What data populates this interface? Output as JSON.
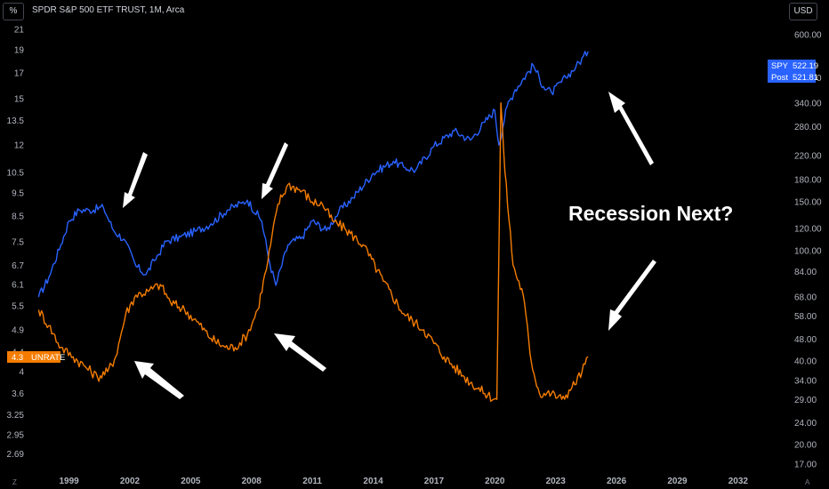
{
  "header": {
    "title": "SPDR S&P 500 ETF TRUST, 1M, Arca",
    "left_unit": "%",
    "right_unit": "USD"
  },
  "footer": {
    "left_glyph": "Z",
    "right_glyph": "A"
  },
  "annotation": {
    "text": "Recession Next?"
  },
  "colors": {
    "spy": "#2962ff",
    "unrate": "#f57c00",
    "background": "#000000",
    "annotation": "#ffffff"
  },
  "badges": {
    "unrate": {
      "value": "4.3",
      "label": "UNRATE"
    },
    "spy": {
      "label": "SPY",
      "value": "522.19"
    },
    "post": {
      "label": "Post",
      "value": "521.81"
    }
  },
  "chart_data": {
    "type": "line",
    "x_ticks": [
      "1999",
      "2002",
      "2005",
      "2008",
      "2011",
      "2014",
      "2017",
      "2020",
      "2023",
      "2026",
      "2029",
      "2032"
    ],
    "left_axis": {
      "scale": "log",
      "unit": "%",
      "ticks": [
        "21",
        "19",
        "17",
        "15",
        "13.5",
        "12",
        "10.5",
        "9.5",
        "8.5",
        "7.5",
        "6.7",
        "6.1",
        "5.5",
        "4.9",
        "4.4",
        "4",
        "3.6",
        "3.25",
        "2.95",
        "2.69"
      ]
    },
    "right_axis": {
      "scale": "log",
      "unit": "USD",
      "ticks": [
        "600.00",
        "420.00",
        "340.00",
        "280.00",
        "220.00",
        "180.00",
        "150.00",
        "120.00",
        "100.00",
        "84.00",
        "68.00",
        "58.00",
        "48.00",
        "40.00",
        "34.00",
        "29.00",
        "24.00",
        "20.00",
        "17.00"
      ]
    },
    "series": [
      {
        "name": "SPY",
        "axis": "right",
        "x": [
          1997.5,
          1998.0,
          1998.6,
          1999.0,
          1999.5,
          2000.0,
          2000.7,
          2001.2,
          2001.7,
          2002.3,
          2002.8,
          2003.2,
          2003.8,
          2004.5,
          2005.3,
          2006.0,
          2006.8,
          2007.5,
          2007.8,
          2008.5,
          2008.9,
          2009.2,
          2009.8,
          2010.5,
          2011.0,
          2011.7,
          2012.3,
          2013.0,
          2014.0,
          2015.0,
          2015.5,
          2016.1,
          2017.0,
          2018.0,
          2018.8,
          2019.5,
          2020.0,
          2020.2,
          2020.6,
          2021.0,
          2021.9,
          2022.4,
          2022.8,
          2023.5,
          2024.0,
          2024.6
        ],
        "values": [
          68,
          80,
          105,
          128,
          140,
          140,
          143,
          118,
          110,
          88,
          82,
          92,
          108,
          112,
          118,
          125,
          140,
          148,
          152,
          128,
          90,
          75,
          105,
          112,
          128,
          118,
          138,
          155,
          190,
          210,
          200,
          195,
          238,
          270,
          250,
          290,
          320,
          240,
          330,
          380,
          465,
          390,
          370,
          420,
          460,
          522
        ]
      },
      {
        "name": "UNRATE",
        "axis": "left",
        "x": [
          1997.5,
          1998.0,
          1998.6,
          1999.2,
          1999.8,
          2000.4,
          2000.9,
          2001.3,
          2001.8,
          2002.3,
          2002.9,
          2003.5,
          2004.0,
          2004.7,
          2005.3,
          2006.0,
          2006.7,
          2007.2,
          2007.8,
          2008.3,
          2008.8,
          2009.3,
          2009.8,
          2010.5,
          2011.0,
          2011.5,
          2012.0,
          2012.6,
          2013.5,
          2014.5,
          2015.5,
          2016.5,
          2017.5,
          2018.5,
          2019.5,
          2020.1,
          2020.3,
          2020.5,
          2020.9,
          2021.4,
          2021.8,
          2022.2,
          2022.8,
          2023.3,
          2023.8,
          2024.3,
          2024.6
        ],
        "values": [
          5.4,
          5.0,
          4.5,
          4.3,
          4.1,
          3.9,
          4.0,
          4.3,
          5.3,
          5.8,
          5.9,
          6.1,
          5.6,
          5.4,
          5.1,
          4.7,
          4.5,
          4.5,
          4.8,
          5.4,
          6.8,
          9.0,
          9.9,
          9.6,
          9.1,
          9.0,
          8.3,
          8.0,
          7.4,
          6.2,
          5.3,
          4.9,
          4.3,
          3.9,
          3.6,
          3.5,
          14.7,
          10.5,
          6.7,
          5.8,
          4.2,
          3.6,
          3.6,
          3.5,
          3.7,
          4.0,
          4.3
        ]
      }
    ],
    "x_range": [
      1997.0,
      2034.2
    ],
    "left_range": [
      2.45,
      22.0
    ],
    "right_range": [
      15.8,
      680.0
    ],
    "grid": false,
    "legend": "none"
  }
}
